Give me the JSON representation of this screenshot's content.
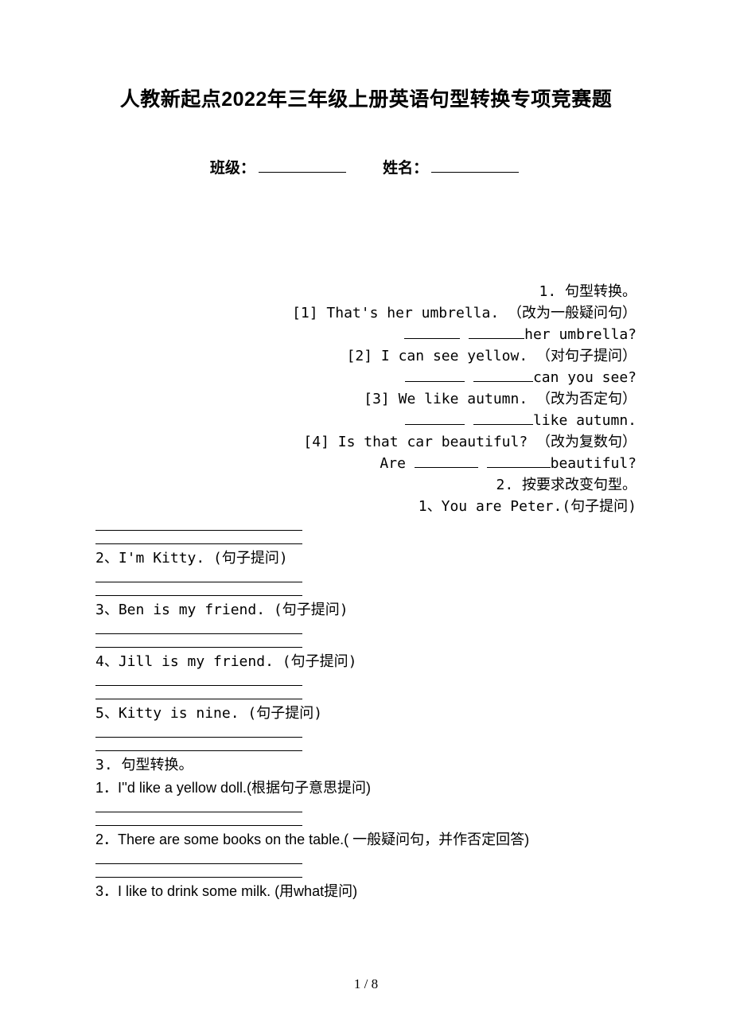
{
  "title": "人教新起点2022年三年级上册英语句型转换专项竞赛题",
  "meta": {
    "class_label": "班级：",
    "name_label": "姓名："
  },
  "section1": {
    "heading": "1. 句型转换。",
    "items": [
      {
        "idx": "[1]",
        "text": "That's her umbrella. （改为一般疑问句）",
        "tail": "her umbrella?"
      },
      {
        "idx": "[2]",
        "text": "I can see yellow. （对句子提问）",
        "tail": "can you see?"
      },
      {
        "idx": "[3]",
        "text": "We like autumn. （改为否定句）",
        "tail": "like autumn."
      },
      {
        "idx": "[4]",
        "text": "Is that car beautiful? （改为复数句）",
        "tail_prefix": "Are ",
        "tail": "beautiful?"
      }
    ]
  },
  "section2": {
    "heading": "2. 按要求改变句型。",
    "items": [
      {
        "label": "1、",
        "text": "You are Peter.(句子提问)"
      },
      {
        "label": "2、",
        "text": "I'm Kitty. (句子提问)"
      },
      {
        "label": "3、",
        "text": "Ben is my friend. (句子提问)"
      },
      {
        "label": "4、",
        "text": "Jill is my friend. (句子提问)"
      },
      {
        "label": "5、",
        "text": "Kitty is nine. (句子提问)"
      }
    ]
  },
  "section3": {
    "heading": "3. 句型转换。",
    "items": [
      {
        "label": "1．",
        "text": "I''d like a yellow doll.(根据句子意思提问)"
      },
      {
        "label": "2．",
        "text": "There are some books on the table.( 一般疑问句，并作否定回答)"
      },
      {
        "label": "3．",
        "text": "I like to drink some milk. (用what提问)"
      }
    ]
  },
  "page_number": "1 / 8"
}
